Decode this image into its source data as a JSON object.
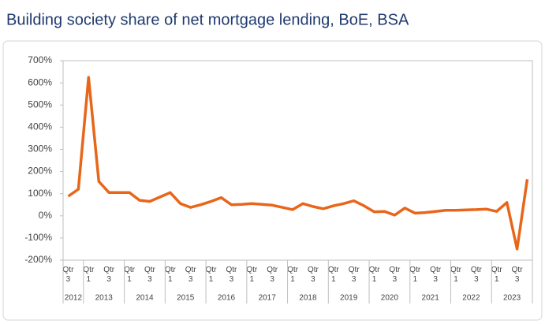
{
  "chart_data": {
    "type": "line",
    "title": "Building society share of net mortgage lending, BoE, BSA",
    "categories": [
      "Qtr 3",
      null,
      "Qtr 1",
      null,
      "Qtr 3",
      null,
      "Qtr 1",
      null,
      "Qtr 3",
      null,
      "Qtr 1",
      null,
      "Qtr 3",
      null,
      "Qtr 1",
      null,
      "Qtr 3",
      null,
      "Qtr 1",
      null,
      "Qtr 3",
      null,
      "Qtr 1",
      null,
      "Qtr 3",
      null,
      "Qtr 1",
      null,
      "Qtr 3",
      null,
      "Qtr 1",
      null,
      "Qtr 3",
      null,
      "Qtr 1",
      null,
      "Qtr 3",
      null,
      "Qtr 1",
      null,
      "Qtr 3",
      null,
      "Qtr 1",
      null,
      "Qtr 3",
      null
    ],
    "x_groups": [
      {
        "label": "2012",
        "size": 2
      },
      {
        "label": "2013",
        "size": 4
      },
      {
        "label": "2014",
        "size": 4
      },
      {
        "label": "2015",
        "size": 4
      },
      {
        "label": "2016",
        "size": 4
      },
      {
        "label": "2017",
        "size": 4
      },
      {
        "label": "2018",
        "size": 4
      },
      {
        "label": "2019",
        "size": 4
      },
      {
        "label": "2020",
        "size": 4
      },
      {
        "label": "2021",
        "size": 4
      },
      {
        "label": "2022",
        "size": 4
      },
      {
        "label": "2023",
        "size": 4
      }
    ],
    "series": [
      {
        "name": "Building society share",
        "color": "#e8661a",
        "values": [
          88,
          120,
          625,
          155,
          105,
          105,
          105,
          70,
          65,
          85,
          105,
          55,
          38,
          50,
          65,
          82,
          50,
          52,
          55,
          52,
          48,
          38,
          28,
          55,
          42,
          32,
          45,
          55,
          68,
          45,
          18,
          20,
          3,
          35,
          12,
          15,
          20,
          25,
          25,
          27,
          28,
          30,
          20,
          60,
          -150,
          165
        ]
      }
    ],
    "ylim": [
      -200,
      700
    ],
    "yticks": [
      {
        "value": -200,
        "label": "-200%"
      },
      {
        "value": -100,
        "label": "-100%"
      },
      {
        "value": 0,
        "label": "0%"
      },
      {
        "value": 100,
        "label": "100%"
      },
      {
        "value": 200,
        "label": "200%"
      },
      {
        "value": 300,
        "label": "300%"
      },
      {
        "value": 400,
        "label": "400%"
      },
      {
        "value": 500,
        "label": "500%"
      },
      {
        "value": 600,
        "label": "600%"
      },
      {
        "value": 700,
        "label": "700%"
      }
    ],
    "grid": false
  }
}
